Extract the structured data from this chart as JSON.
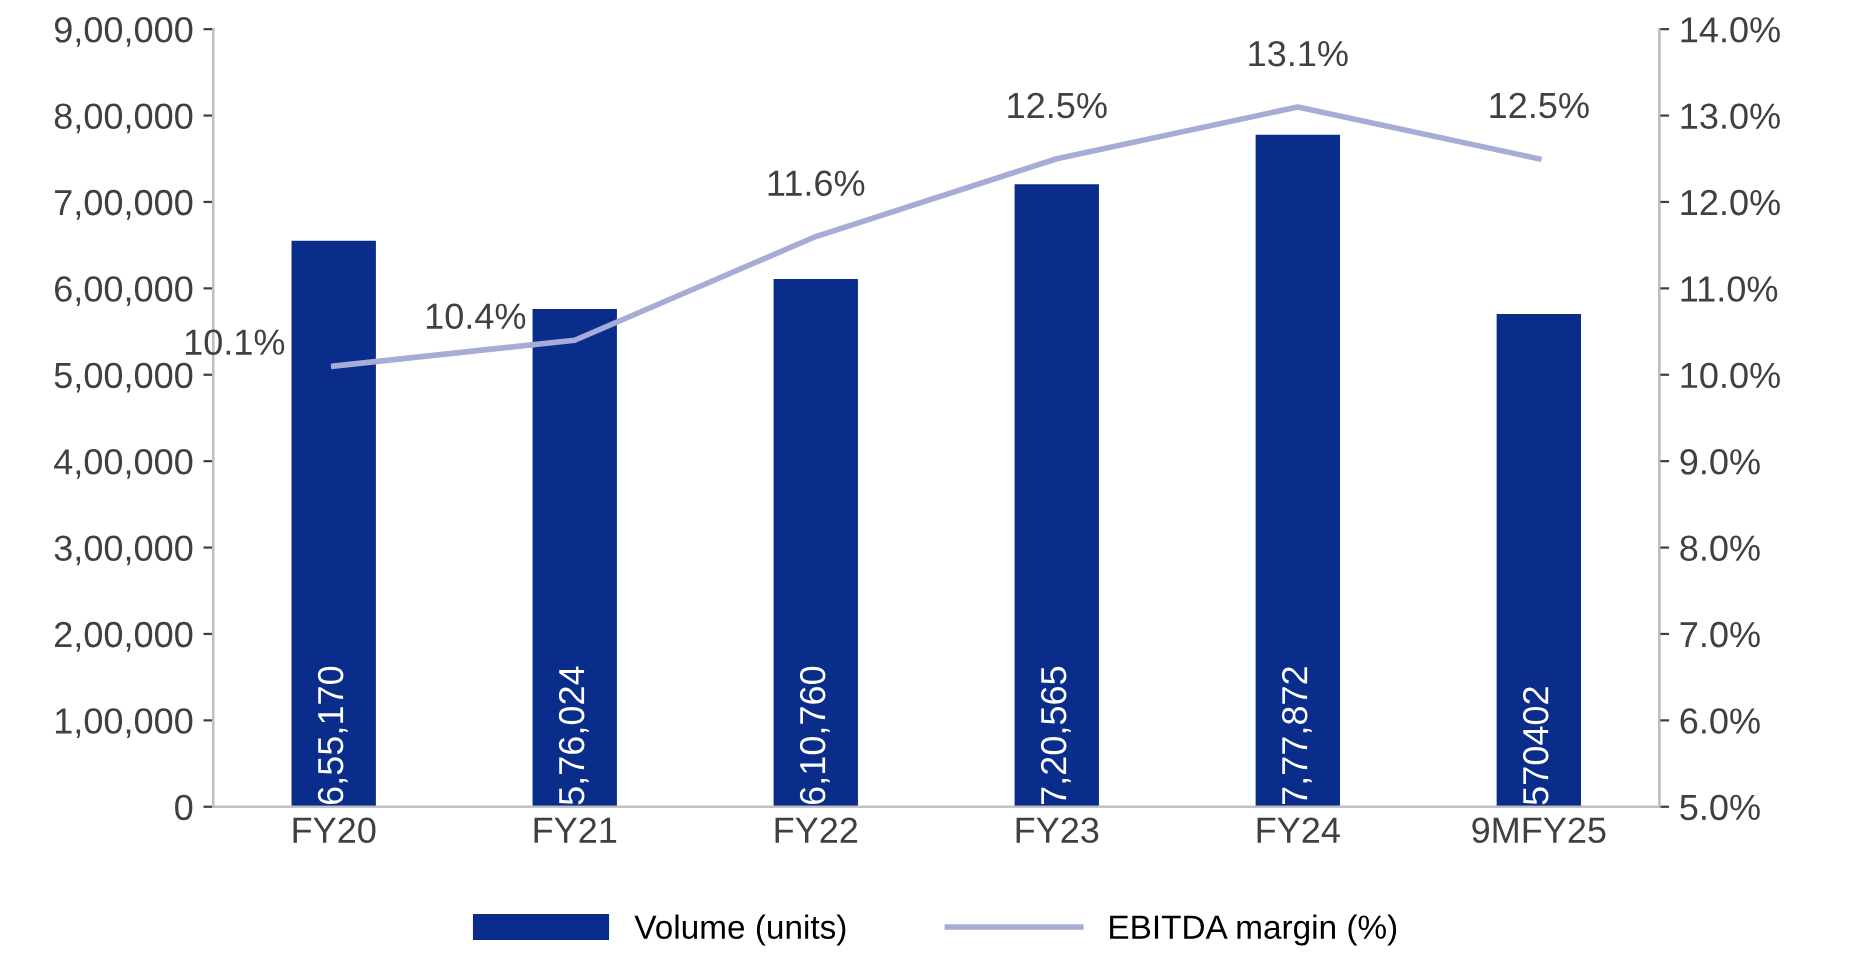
{
  "chart_data": {
    "type": "bar",
    "categories": [
      "FY20",
      "FY21",
      "FY22",
      "FY23",
      "FY24",
      "9MFY25"
    ],
    "series": [
      {
        "name": "Volume (units)",
        "color": "#0a2d8c",
        "values": [
          655170,
          576024,
          610760,
          720565,
          777872,
          570402
        ],
        "value_labels": [
          "6,55,170",
          "5,76,024",
          "6,10,760",
          "7,20,565",
          "7,77,872",
          "570402"
        ]
      },
      {
        "name": "EBITDA margin (%)",
        "type": "line",
        "axis": "y2",
        "color": "#a6acd6",
        "values": [
          10.1,
          10.4,
          11.6,
          12.5,
          13.1,
          12.5
        ],
        "value_labels": [
          "10.1%",
          "10.4%",
          "11.6%",
          "12.5%",
          "13.1%",
          "12.5%"
        ]
      }
    ],
    "ylim": [
      0,
      900000
    ],
    "yticks": [
      0,
      {
        "value": 100000,
        "label": "1,00,000"
      },
      {
        "value": 200000,
        "label": "2,00,000"
      },
      {
        "value": 300000,
        "label": "3,00,000"
      },
      {
        "value": 400000,
        "label": "4,00,000"
      },
      {
        "value": 500000,
        "label": "5,00,000"
      },
      {
        "value": 600000,
        "label": "6,00,000"
      },
      {
        "value": 700000,
        "label": "7,00,000"
      },
      {
        "value": 800000,
        "label": "8,00,000"
      },
      {
        "value": 900000,
        "label": "9,00,000"
      }
    ],
    "y2lim": [
      5,
      14
    ],
    "y2ticks": [
      {
        "value": 5,
        "label": "5.0%"
      },
      {
        "value": 6,
        "label": "6.0%"
      },
      {
        "value": 7,
        "label": "7.0%"
      },
      {
        "value": 8,
        "label": "8.0%"
      },
      {
        "value": 9,
        "label": "9.0%"
      },
      {
        "value": 10,
        "label": "10.0%"
      },
      {
        "value": 11,
        "label": "11.0%"
      },
      {
        "value": 12,
        "label": "12.0%"
      },
      {
        "value": 13,
        "label": "13.0%"
      },
      {
        "value": 14,
        "label": "14.0%"
      }
    ],
    "grid": false,
    "legend": "bottom",
    "marker": "none",
    "line_style": "solid"
  }
}
